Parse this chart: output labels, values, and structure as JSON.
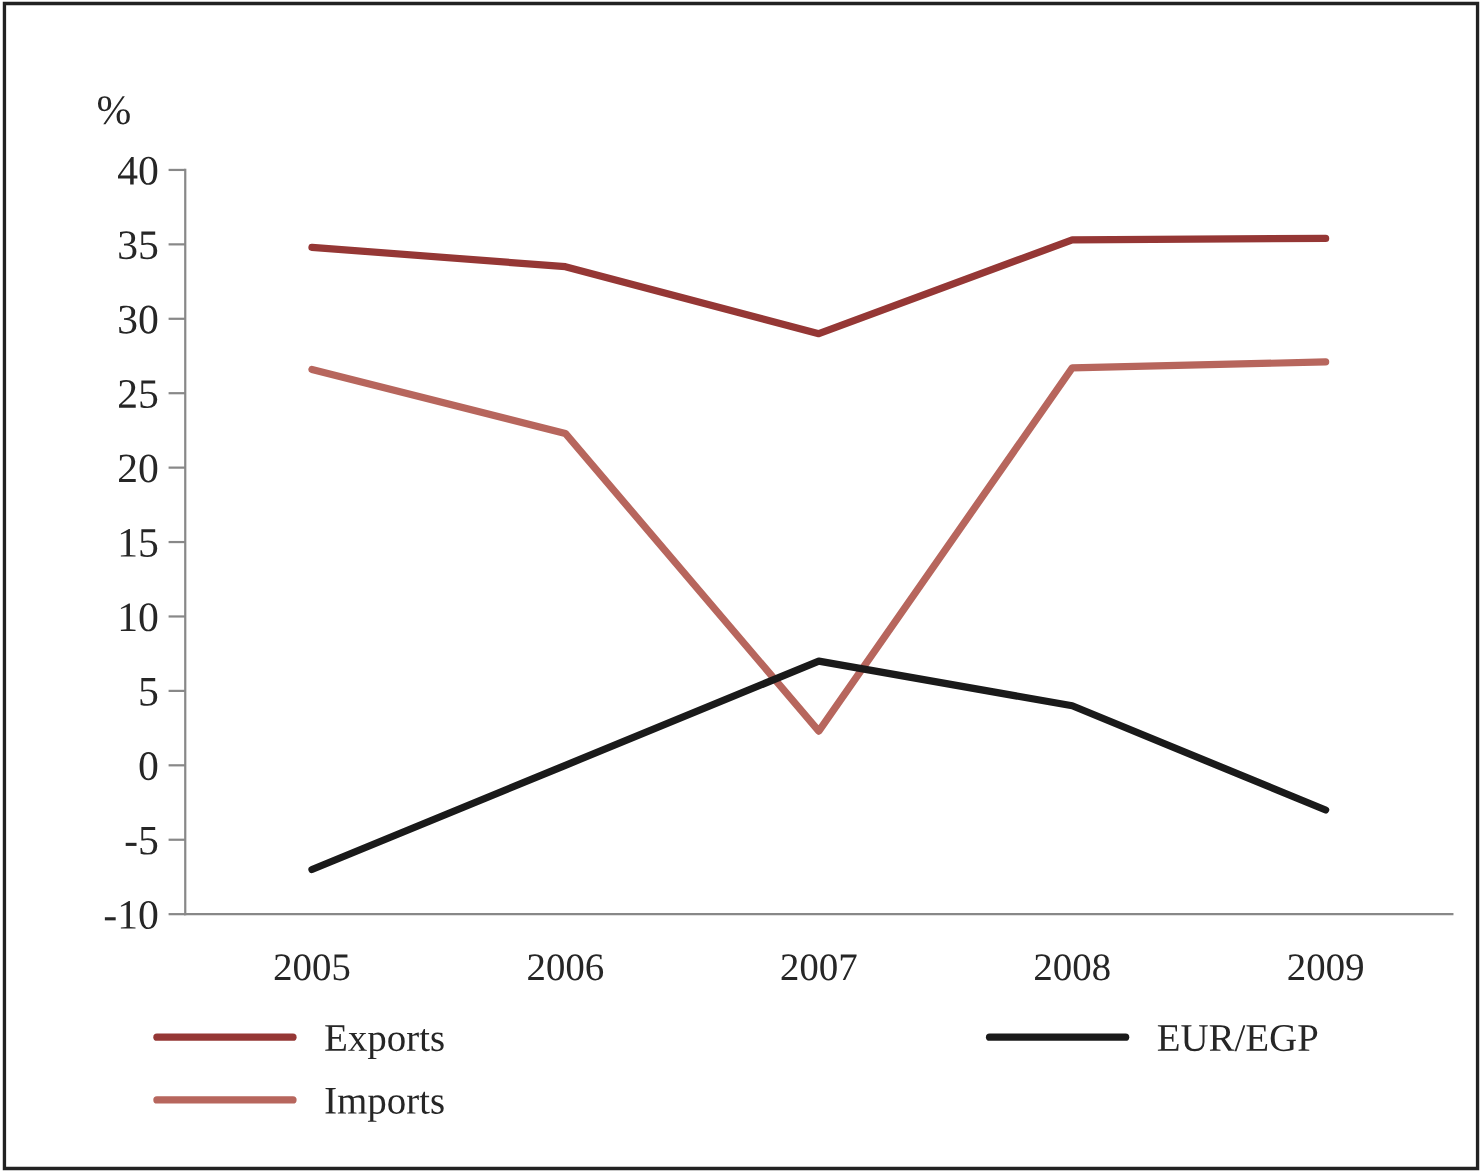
{
  "chart_data": {
    "type": "line",
    "ylabel": "%",
    "categories": [
      "2005",
      "2006",
      "2007",
      "2008",
      "2009"
    ],
    "series": [
      {
        "name": "Exports",
        "color": "#953735",
        "values": [
          34.8,
          33.5,
          29.0,
          35.3,
          35.4
        ]
      },
      {
        "name": "Imports",
        "color": "#b7665d",
        "values": [
          26.6,
          22.3,
          2.3,
          26.7,
          27.1
        ]
      },
      {
        "name": "EUR/EGP",
        "color": "#1a1a1a",
        "values": [
          -7,
          0,
          7,
          4,
          -3
        ]
      }
    ],
    "ylim": [
      -10,
      40
    ],
    "yticks": [
      -10,
      -5,
      0,
      5,
      10,
      15,
      20,
      25,
      30,
      35,
      40
    ],
    "grid": false,
    "legend": "bottom",
    "marker": "none",
    "line_style": "solid"
  }
}
